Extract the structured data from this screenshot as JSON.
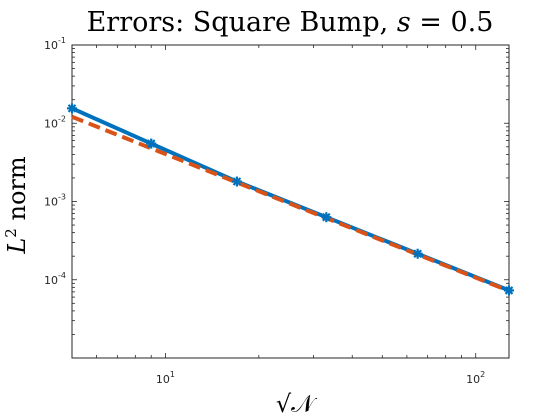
{
  "chart_data": {
    "type": "line",
    "title_parts": {
      "prefix": "Errors: Square Bump, ",
      "var": "s",
      "eq": " = 0.5"
    },
    "xlabel": "√𝒩",
    "ylabel": {
      "base": "L",
      "sup": "2",
      "rest": " norm"
    },
    "x_scale": "log",
    "y_scale": "log",
    "xlim": [
      5,
      128
    ],
    "ylim": [
      1e-05,
      0.1
    ],
    "x_ticks": [
      {
        "base": "10",
        "exp": "1",
        "value": 10
      },
      {
        "base": "10",
        "exp": "2",
        "value": 100
      }
    ],
    "y_ticks": [
      {
        "base": "10",
        "exp": "-1",
        "value": 0.1
      },
      {
        "base": "10",
        "exp": "-2",
        "value": 0.01
      },
      {
        "base": "10",
        "exp": "-3",
        "value": 0.001
      },
      {
        "base": "10",
        "exp": "-4",
        "value": 0.0001
      }
    ],
    "grid": false,
    "series": [
      {
        "color": "#0072BD",
        "style": "solid",
        "marker": "asterisk",
        "x": [
          5,
          9,
          17,
          33,
          65,
          128
        ],
        "y": [
          0.0155,
          0.0055,
          0.0018,
          0.00063,
          0.000215,
          7.3e-05
        ]
      },
      {
        "color": "#D95319",
        "style": "dashed",
        "marker": "none",
        "x": [
          5,
          128
        ],
        "y": [
          0.0121,
          7.2e-05
        ]
      }
    ]
  }
}
